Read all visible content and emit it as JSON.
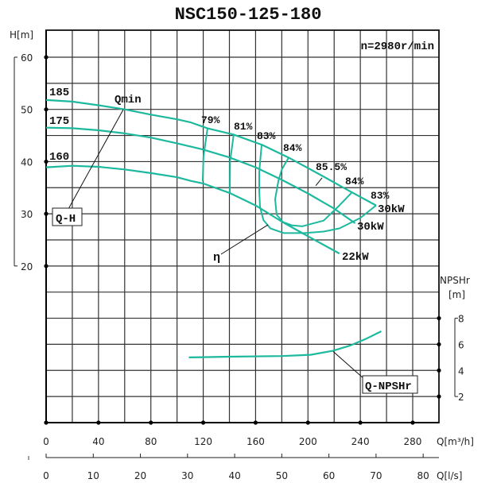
{
  "chart_data": {
    "type": "line",
    "title": "NSC150-125-180",
    "speed_label": "n=2980r/min",
    "xlabel": "Q[m³/h]",
    "xlabel_secondary": "Q[l/s]",
    "ylabel": "H[m]",
    "ylabel_right": "NPSHr",
    "ylabel_right_unit": "[m]",
    "xlim": [
      0,
      300
    ],
    "ylim": [
      -10,
      65
    ],
    "y_right_lim": [
      0,
      8
    ],
    "grid": true,
    "x_ticks": [
      0,
      40,
      80,
      120,
      160,
      200,
      240,
      280
    ],
    "x_ticks_secondary": [
      0,
      10,
      20,
      30,
      40,
      50,
      60,
      70,
      80
    ],
    "y_ticks": [
      60,
      50,
      40,
      30,
      20
    ],
    "y_right_ticks": [
      8,
      6,
      4,
      2
    ],
    "curve_color": "#1db99e",
    "head_curves": [
      {
        "name": "185",
        "points": [
          [
            0,
            51.8
          ],
          [
            20,
            51.5
          ],
          [
            40,
            50.8
          ],
          [
            60,
            50
          ],
          [
            80,
            49
          ],
          [
            100,
            48.1
          ],
          [
            110.5,
            47.5
          ],
          [
            123,
            46.4
          ],
          [
            143,
            45.2
          ],
          [
            165,
            43.2
          ],
          [
            185,
            40.8
          ],
          [
            210,
            37.4
          ],
          [
            230,
            34.6
          ],
          [
            252,
            31.6
          ]
        ]
      },
      {
        "name": "175",
        "points": [
          [
            0,
            46.5
          ],
          [
            20,
            46.4
          ],
          [
            40,
            46
          ],
          [
            60,
            45.4
          ],
          [
            80,
            44.6
          ],
          [
            100,
            43.5
          ],
          [
            120,
            42.3
          ],
          [
            140,
            40.8
          ],
          [
            160,
            38.9
          ],
          [
            180,
            36.5
          ],
          [
            200,
            33.9
          ],
          [
            220,
            31
          ],
          [
            236,
            28.2
          ]
        ]
      },
      {
        "name": "160",
        "points": [
          [
            0,
            38.9
          ],
          [
            20,
            39.2
          ],
          [
            40,
            39
          ],
          [
            60,
            38.5
          ],
          [
            80,
            37.8
          ],
          [
            100,
            37
          ],
          [
            110.5,
            36.3
          ],
          [
            120,
            35.8
          ],
          [
            140,
            34
          ],
          [
            160,
            31.6
          ],
          [
            180,
            28.5
          ],
          [
            200,
            25.7
          ],
          [
            224,
            22.4
          ]
        ]
      }
    ],
    "efficiency_curves": [
      {
        "name": "79%",
        "points": [
          [
            123.3,
            46.4
          ],
          [
            120.2,
            41
          ],
          [
            119.6,
            36.2
          ]
        ]
      },
      {
        "name": "81%",
        "points": [
          [
            143.3,
            45.2
          ],
          [
            140.5,
            40
          ],
          [
            140.3,
            34
          ]
        ]
      },
      {
        "name": "83%",
        "points": [
          [
            164.6,
            43.2
          ],
          [
            162.8,
            38
          ],
          [
            162.8,
            34.4
          ],
          [
            163.4,
            31.3
          ],
          [
            166,
            28.8
          ],
          [
            171.3,
            27.2
          ],
          [
            181.6,
            26.3
          ],
          [
            197.4,
            26.3
          ],
          [
            212,
            26.6
          ],
          [
            224,
            27.2
          ],
          [
            240,
            29.2
          ],
          [
            252,
            31.6
          ]
        ]
      },
      {
        "name": "84%",
        "points": [
          [
            185.3,
            40.8
          ],
          [
            180,
            38.5
          ],
          [
            177.4,
            36.3
          ],
          [
            174.9,
            32.8
          ],
          [
            176.1,
            29.8
          ],
          [
            181,
            28.4
          ],
          [
            187.7,
            27.8
          ],
          [
            195.6,
            27.6
          ],
          [
            212,
            28.7
          ],
          [
            224,
            31.6
          ],
          [
            233.2,
            34
          ]
        ]
      }
    ],
    "npsh_curve": {
      "name": "Q-NPSHr",
      "points": [
        [
          109,
          5.0
        ],
        [
          140,
          5.05
        ],
        [
          180,
          5.1
        ],
        [
          202,
          5.2
        ],
        [
          219,
          5.5
        ],
        [
          232,
          5.9
        ],
        [
          244,
          6.4
        ],
        [
          256,
          7.0
        ]
      ]
    },
    "labels": {
      "d185": "185",
      "d175": "175",
      "d160": "160",
      "qmin": "Qmin",
      "e79": "79%",
      "e81": "81%",
      "e83a": "83%",
      "e84a": "84%",
      "e855": "85.5%",
      "e84b": "84%",
      "e83b": "83%",
      "p30a": "30kW",
      "p30b": "30kW",
      "p22": "22kW",
      "eta": "η",
      "qh": "Q-H",
      "qnpsh": "Q-NPSHr"
    }
  }
}
